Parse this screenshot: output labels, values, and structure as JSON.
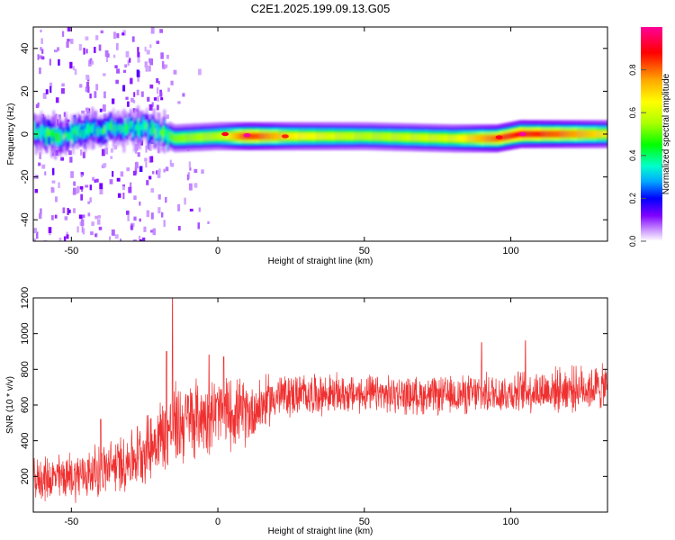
{
  "figure": {
    "title": "C2E1.2025.199.09.13.G05"
  },
  "chart_data": [
    {
      "type": "heatmap",
      "xlabel": "Height of straight line (km)",
      "ylabel": "Frequency (Hz)",
      "xlim": [
        -63,
        133
      ],
      "ylim": [
        -50,
        50
      ],
      "xticks": [
        -50,
        0,
        50,
        100
      ],
      "yticks": [
        -40,
        -20,
        0,
        20,
        40
      ],
      "grid": false,
      "colormap": [
        "#ffffff",
        "#cc99ff",
        "#7f00ff",
        "#0000ff",
        "#00aaff",
        "#00ffcc",
        "#00ff00",
        "#aaff00",
        "#ffff00",
        "#ffaa00",
        "#ff0000",
        "#ff0099"
      ],
      "colorbar": {
        "label": "Normalized spectral amplitude",
        "range": [
          0,
          1
        ],
        "ticks": [
          0.0,
          0.2,
          0.4,
          0.6,
          0.8
        ],
        "tick_labels": [
          "0.0",
          "0.2",
          "0.4",
          "0.6",
          "0.8"
        ],
        "placement": "right"
      },
      "band": {
        "description_center_hz": 0,
        "profile": [
          {
            "x": -62,
            "center": 1,
            "amp": 0.45
          },
          {
            "x": -55,
            "center": -1,
            "amp": 0.5
          },
          {
            "x": -45,
            "center": 2,
            "amp": 0.45
          },
          {
            "x": -35,
            "center": 3,
            "amp": 0.45
          },
          {
            "x": -25,
            "center": 3,
            "amp": 0.45
          },
          {
            "x": -18,
            "center": 0,
            "amp": 0.5
          },
          {
            "x": -15,
            "center": -2,
            "amp": 0.55
          },
          {
            "x": 0,
            "center": -1,
            "amp": 0.6
          },
          {
            "x": 10,
            "center": -1,
            "amp": 0.9
          },
          {
            "x": 25,
            "center": -1,
            "amp": 0.7
          },
          {
            "x": 50,
            "center": -1,
            "amp": 0.6
          },
          {
            "x": 80,
            "center": -2,
            "amp": 0.65
          },
          {
            "x": 95,
            "center": -2,
            "amp": 0.85
          },
          {
            "x": 103,
            "center": 0,
            "amp": 0.95
          },
          {
            "x": 133,
            "center": 0,
            "amp": 0.7
          }
        ],
        "hot_spots": [
          {
            "x": 2.5,
            "y": 0,
            "amp": 0.9
          },
          {
            "x": 10,
            "y": -0.5,
            "amp": 1.0
          },
          {
            "x": 23,
            "y": -1,
            "amp": 0.85
          },
          {
            "x": 96,
            "y": -1.5,
            "amp": 0.9
          },
          {
            "x": 104,
            "y": 0,
            "amp": 1.0
          }
        ],
        "noise_region_x": [
          -63,
          -17
        ]
      }
    },
    {
      "type": "line",
      "xlabel": "Height of straight line (km)",
      "ylabel": "SNR (10 * v/v)",
      "xlim": [
        -63,
        133
      ],
      "ylim": [
        0,
        1200
      ],
      "xticks": [
        -50,
        0,
        50,
        100
      ],
      "yticks": [
        200,
        400,
        600,
        800,
        1000,
        1200
      ],
      "grid": false,
      "series": [
        {
          "color": "#f03030",
          "envelope": [
            {
              "x": -63,
              "mean": 180,
              "spread": 110
            },
            {
              "x": -50,
              "mean": 200,
              "spread": 130
            },
            {
              "x": -40,
              "mean": 230,
              "spread": 140
            },
            {
              "x": -30,
              "mean": 290,
              "spread": 160
            },
            {
              "x": -25,
              "mean": 350,
              "spread": 180
            },
            {
              "x": -20,
              "mean": 420,
              "spread": 200
            },
            {
              "x": -15,
              "mean": 480,
              "spread": 230
            },
            {
              "x": -10,
              "mean": 520,
              "spread": 220
            },
            {
              "x": -5,
              "mean": 540,
              "spread": 200
            },
            {
              "x": 0,
              "mean": 560,
              "spread": 190
            },
            {
              "x": 5,
              "mean": 560,
              "spread": 190
            },
            {
              "x": 10,
              "mean": 550,
              "spread": 170
            },
            {
              "x": 15,
              "mean": 600,
              "spread": 150
            },
            {
              "x": 20,
              "mean": 650,
              "spread": 120
            },
            {
              "x": 30,
              "mean": 660,
              "spread": 110
            },
            {
              "x": 50,
              "mean": 660,
              "spread": 100
            },
            {
              "x": 75,
              "mean": 650,
              "spread": 100
            },
            {
              "x": 100,
              "mean": 670,
              "spread": 110
            },
            {
              "x": 120,
              "mean": 690,
              "spread": 120
            },
            {
              "x": 133,
              "mean": 700,
              "spread": 120
            }
          ],
          "peaks": [
            {
              "x": -15.5,
              "y": 1200
            },
            {
              "x": -17.5,
              "y": 900
            },
            {
              "x": -3,
              "y": 880
            },
            {
              "x": 2,
              "y": 870
            },
            {
              "x": -40,
              "y": 520
            },
            {
              "x": 90,
              "y": 950
            },
            {
              "x": 105,
              "y": 960
            }
          ]
        }
      ]
    }
  ]
}
